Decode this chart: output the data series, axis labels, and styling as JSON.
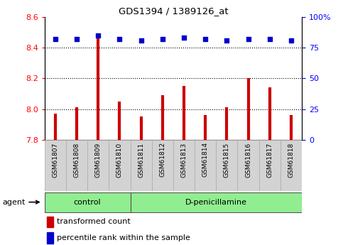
{
  "title": "GDS1394 / 1389126_at",
  "samples": [
    "GSM61807",
    "GSM61808",
    "GSM61809",
    "GSM61810",
    "GSM61811",
    "GSM61812",
    "GSM61813",
    "GSM61814",
    "GSM61815",
    "GSM61816",
    "GSM61817",
    "GSM61818"
  ],
  "transformed_count": [
    7.97,
    8.01,
    8.47,
    8.05,
    7.95,
    8.09,
    8.15,
    7.96,
    8.01,
    8.2,
    8.14,
    7.96
  ],
  "percentile_rank": [
    82,
    82,
    85,
    82,
    81,
    82,
    83,
    82,
    81,
    82,
    82,
    81
  ],
  "control_count": 4,
  "groups": [
    "control",
    "D-penicillamine"
  ],
  "bar_color": "#CC0000",
  "dot_color": "#0000CC",
  "ylim_left": [
    7.8,
    8.6
  ],
  "ylim_right": [
    0,
    100
  ],
  "yticks_left": [
    7.8,
    8.0,
    8.2,
    8.4,
    8.6
  ],
  "yticks_right": [
    0,
    25,
    50,
    75,
    100
  ],
  "grid_lines": [
    8.0,
    8.2,
    8.4
  ],
  "sample_bg_color": "#d3d3d3",
  "group_bg_color": "#90EE90",
  "legend_items": [
    "transformed count",
    "percentile rank within the sample"
  ]
}
